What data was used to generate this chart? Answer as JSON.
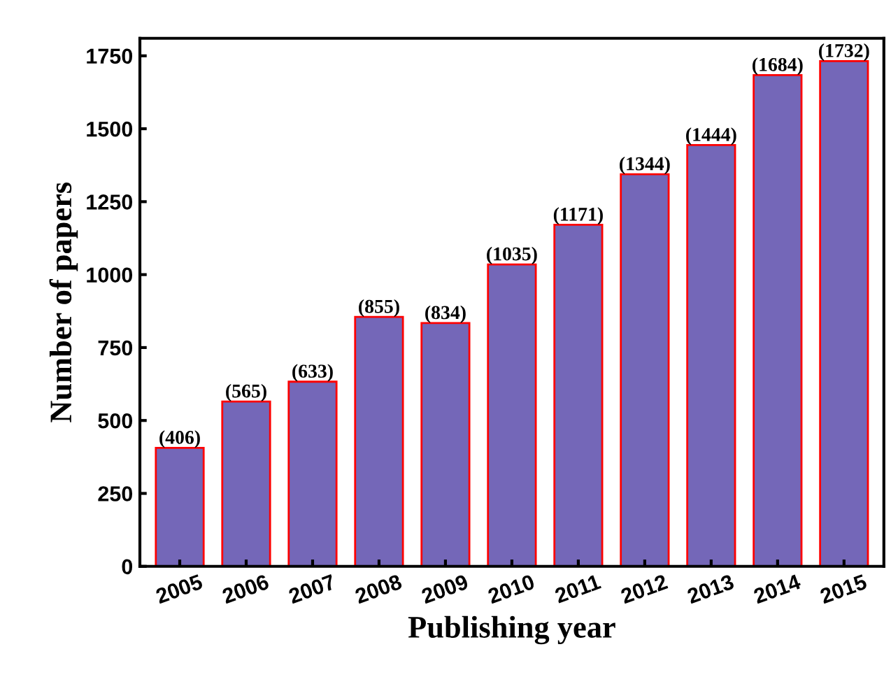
{
  "chart_data": {
    "type": "bar",
    "xlabel": "Publishing year",
    "ylabel": "Number of papers",
    "categories": [
      "2005",
      "2006",
      "2007",
      "2008",
      "2009",
      "2010",
      "2011",
      "2012",
      "2013",
      "2014",
      "2015"
    ],
    "values": [
      406,
      565,
      633,
      855,
      834,
      1035,
      1171,
      1344,
      1444,
      1684,
      1732
    ],
    "value_labels": [
      "(406)",
      "(565)",
      "(633)",
      "(855)",
      "(834)",
      "(1035)",
      "(1171)",
      "(1344)",
      "(1444)",
      "(1684)",
      "(1732)"
    ],
    "color": "#7467b8",
    "ylim": [
      0,
      1810
    ],
    "yticks": [
      0,
      250,
      500,
      750,
      1000,
      1250,
      1500,
      1750
    ],
    "grid": false,
    "legend": false
  }
}
